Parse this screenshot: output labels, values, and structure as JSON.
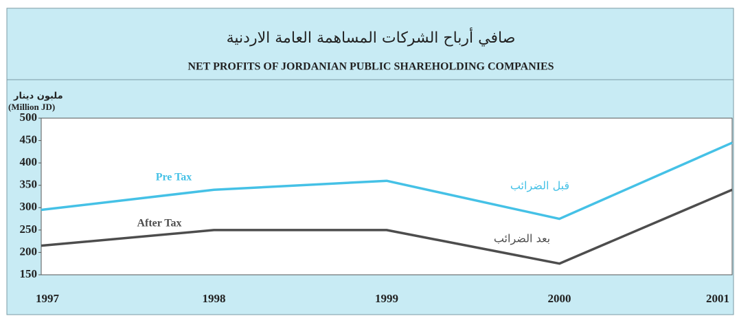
{
  "chart_data": {
    "type": "line",
    "title": "صافي أرباح الشركات المساهمة العامة الاردنية",
    "subtitle": "NET PROFITS OF JORDANIAN PUBLIC SHAREHOLDING COMPANIES",
    "y_label": [
      "ملبون دينار",
      "(Million JD)"
    ],
    "categories": [
      "1997",
      "1998",
      "1999",
      "2000",
      "2001"
    ],
    "series": [
      {
        "name": "Pre Tax",
        "color": "#45c1e6",
        "values": [
          295,
          340,
          360,
          275,
          445
        ]
      },
      {
        "name": "After Tax",
        "color": "#4d4d4d",
        "values": [
          215,
          250,
          250,
          175,
          340
        ]
      }
    ],
    "annotations": [
      "قبل الضرائب",
      "بعد الضرائب"
    ],
    "ylim": [
      150,
      500
    ],
    "yticks": [
      150,
      200,
      250,
      300,
      350,
      400,
      450,
      500
    ]
  }
}
